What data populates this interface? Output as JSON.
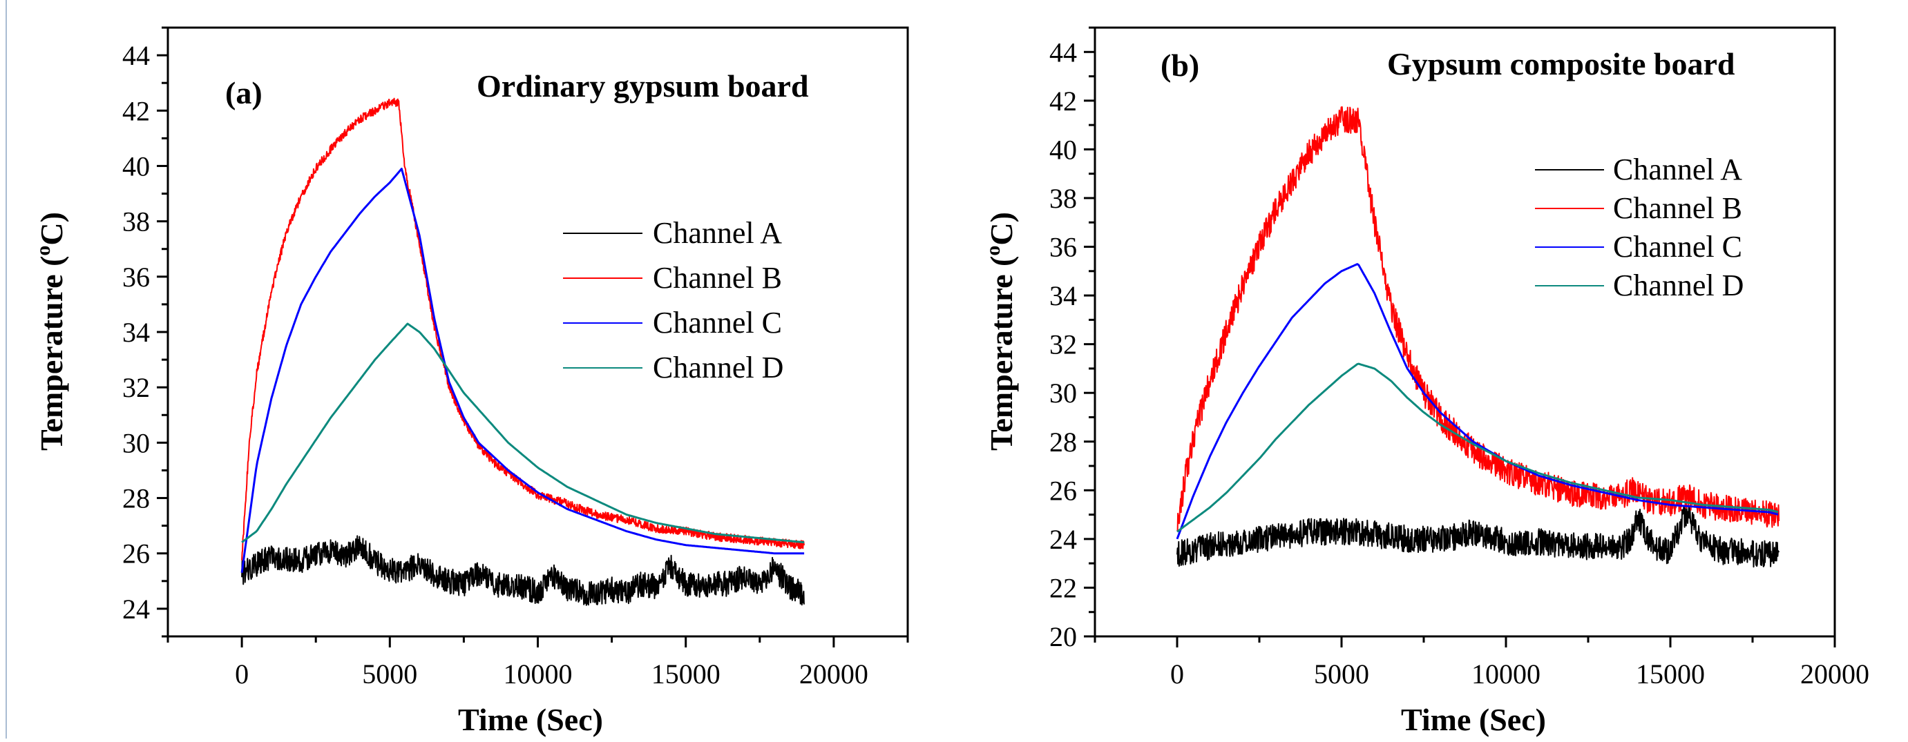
{
  "chart_data": [
    {
      "type": "line",
      "panel": "(a)",
      "title": "Ordinary gypsum board",
      "xlabel": "Time (Sec)",
      "ylabel_main": "Temperature (",
      "ylabel_sup": "o",
      "ylabel_tail": "C)",
      "xlim": [
        -2500,
        22500
      ],
      "ylim": [
        23,
        45
      ],
      "xticks": [
        0,
        5000,
        10000,
        15000,
        20000
      ],
      "yticks": [
        24,
        26,
        28,
        30,
        32,
        34,
        36,
        38,
        40,
        42,
        44
      ],
      "legend_position": "right-middle",
      "series": [
        {
          "name": "Channel A",
          "color": "#000000",
          "noise": 0.45,
          "x": [
            0,
            500,
            1000,
            1500,
            2000,
            2500,
            3000,
            3500,
            4000,
            4500,
            5000,
            5500,
            6000,
            6500,
            7000,
            7500,
            8000,
            8500,
            9000,
            9500,
            10000,
            10500,
            11000,
            11500,
            12000,
            12500,
            13000,
            13500,
            14000,
            14500,
            15000,
            15500,
            16000,
            16500,
            17000,
            17500,
            18000,
            18500,
            19000
          ],
          "y": [
            25.3,
            25.6,
            25.9,
            25.8,
            25.7,
            26.0,
            26.1,
            25.9,
            26.3,
            25.7,
            25.4,
            25.3,
            25.7,
            25.2,
            25.0,
            24.9,
            25.3,
            24.9,
            24.8,
            24.8,
            24.6,
            25.2,
            24.7,
            24.6,
            24.5,
            24.7,
            24.6,
            24.9,
            24.8,
            25.5,
            24.9,
            24.8,
            24.9,
            24.9,
            25.2,
            24.9,
            25.5,
            24.8,
            24.5
          ]
        },
        {
          "name": "Channel B",
          "color": "#ff0000",
          "noise": 0.15,
          "x": [
            0,
            250,
            500,
            1000,
            1500,
            2000,
            2500,
            3000,
            3500,
            4000,
            4500,
            5000,
            5300,
            5500,
            6000,
            6500,
            7000,
            7500,
            8000,
            8500,
            9000,
            10000,
            11000,
            12000,
            13000,
            14000,
            15000,
            16000,
            17000,
            18000,
            19000
          ],
          "y": [
            25.8,
            30.0,
            32.5,
            35.5,
            37.6,
            38.9,
            39.9,
            40.6,
            41.2,
            41.7,
            42.0,
            42.3,
            42.3,
            40.0,
            37.2,
            34.2,
            32.0,
            30.8,
            29.9,
            29.3,
            28.9,
            28.1,
            27.8,
            27.4,
            27.2,
            26.9,
            26.8,
            26.6,
            26.5,
            26.4,
            26.3
          ]
        },
        {
          "name": "Channel C",
          "color": "#0000ff",
          "noise": 0.0,
          "x": [
            0,
            500,
            1000,
            1500,
            2000,
            2500,
            3000,
            3500,
            4000,
            4500,
            5000,
            5400,
            6000,
            6500,
            7000,
            7500,
            8000,
            9000,
            10000,
            11000,
            12000,
            13000,
            14000,
            15000,
            16000,
            17000,
            18000,
            19000
          ],
          "y": [
            25.3,
            29.2,
            31.6,
            33.5,
            35.0,
            36.0,
            36.9,
            37.6,
            38.3,
            38.9,
            39.4,
            39.9,
            37.5,
            34.5,
            32.2,
            30.9,
            30.0,
            29.0,
            28.2,
            27.6,
            27.2,
            26.8,
            26.5,
            26.3,
            26.2,
            26.1,
            26.0,
            26.0
          ]
        },
        {
          "name": "Channel D",
          "color": "#0d8a7e",
          "noise": 0.0,
          "x": [
            0,
            500,
            1000,
            1500,
            2000,
            2500,
            3000,
            3500,
            4000,
            4500,
            5000,
            5600,
            6000,
            6500,
            7000,
            7500,
            8000,
            9000,
            10000,
            11000,
            12000,
            13000,
            14000,
            15000,
            16000,
            17000,
            18000,
            19000
          ],
          "y": [
            26.4,
            26.8,
            27.6,
            28.5,
            29.3,
            30.1,
            30.9,
            31.6,
            32.3,
            33.0,
            33.6,
            34.3,
            34.0,
            33.4,
            32.6,
            31.8,
            31.2,
            30.0,
            29.1,
            28.4,
            27.9,
            27.4,
            27.1,
            26.9,
            26.7,
            26.6,
            26.5,
            26.4
          ]
        }
      ]
    },
    {
      "type": "line",
      "panel": "(b)",
      "title": "Gypsum composite board",
      "xlabel": "Time (Sec)",
      "ylabel_main": "Temperature (",
      "ylabel_sup": "o",
      "ylabel_tail": "C)",
      "xlim": [
        -2500,
        20000
      ],
      "ylim": [
        20,
        45
      ],
      "xticks": [
        0,
        5000,
        10000,
        15000,
        20000
      ],
      "yticks": [
        20,
        22,
        24,
        26,
        28,
        30,
        32,
        34,
        36,
        38,
        40,
        42,
        44
      ],
      "legend_position": "top-right",
      "series": [
        {
          "name": "Channel A",
          "color": "#000000",
          "noise": 0.55,
          "x": [
            0,
            500,
            1000,
            1500,
            2000,
            2500,
            3000,
            3500,
            4000,
            4500,
            5000,
            5500,
            6000,
            6500,
            7000,
            7500,
            8000,
            8500,
            9000,
            9500,
            10000,
            10500,
            11000,
            11500,
            12000,
            12500,
            13000,
            13500,
            13800,
            14000,
            14300,
            14600,
            15000,
            15300,
            15500,
            15800,
            16200,
            16600,
            17000,
            17500,
            18000,
            18300
          ],
          "y": [
            23.4,
            23.5,
            23.7,
            23.8,
            23.9,
            24.0,
            24.1,
            24.1,
            24.3,
            24.3,
            24.3,
            24.3,
            24.2,
            24.1,
            24.0,
            24.0,
            24.0,
            24.1,
            24.3,
            24.1,
            23.9,
            23.8,
            23.9,
            23.8,
            23.7,
            23.7,
            23.7,
            23.7,
            24.0,
            25.0,
            24.1,
            23.6,
            23.5,
            24.5,
            25.1,
            24.2,
            23.7,
            23.5,
            23.5,
            23.4,
            23.4,
            23.4
          ]
        },
        {
          "name": "Channel B",
          "color": "#ff0000",
          "noise": 0.55,
          "x": [
            0,
            250,
            500,
            1000,
            1500,
            2000,
            2500,
            3000,
            3500,
            4000,
            4500,
            5000,
            5500,
            6000,
            6500,
            7000,
            7500,
            8000,
            9000,
            10000,
            11000,
            12000,
            13000,
            13500,
            13900,
            14300,
            15000,
            15500,
            16000,
            17000,
            18000,
            18300
          ],
          "y": [
            24.4,
            26.5,
            28.2,
            30.5,
            32.5,
            34.4,
            36.0,
            37.5,
            38.7,
            39.8,
            40.7,
            41.2,
            41.2,
            37.0,
            33.5,
            31.5,
            30.0,
            29.0,
            27.6,
            26.8,
            26.3,
            25.9,
            25.7,
            25.7,
            26.1,
            25.6,
            25.5,
            25.8,
            25.4,
            25.2,
            25.0,
            25.0
          ]
        },
        {
          "name": "Channel C",
          "color": "#0000ff",
          "noise": 0.0,
          "x": [
            0,
            500,
            1000,
            1500,
            2000,
            2500,
            3000,
            3500,
            4000,
            4500,
            5000,
            5500,
            6000,
            6500,
            7000,
            7500,
            8000,
            9000,
            10000,
            11000,
            12000,
            13000,
            14000,
            15000,
            16000,
            17000,
            18000,
            18300
          ],
          "y": [
            24.0,
            25.8,
            27.4,
            28.8,
            30.0,
            31.1,
            32.1,
            33.1,
            33.8,
            34.5,
            35.0,
            35.3,
            34.1,
            32.5,
            31.0,
            30.0,
            29.2,
            28.0,
            27.2,
            26.6,
            26.2,
            25.9,
            25.6,
            25.4,
            25.3,
            25.2,
            25.1,
            25.0
          ]
        },
        {
          "name": "Channel D",
          "color": "#0d8a7e",
          "noise": 0.0,
          "x": [
            0,
            500,
            1000,
            1500,
            2000,
            2500,
            3000,
            3500,
            4000,
            4500,
            5000,
            5500,
            6000,
            6500,
            7000,
            7500,
            8000,
            9000,
            10000,
            11000,
            12000,
            13000,
            14000,
            15000,
            16000,
            17000,
            18000,
            18300
          ],
          "y": [
            24.3,
            24.8,
            25.3,
            25.9,
            26.6,
            27.3,
            28.1,
            28.8,
            29.5,
            30.1,
            30.7,
            31.2,
            31.0,
            30.5,
            29.8,
            29.2,
            28.7,
            27.9,
            27.2,
            26.7,
            26.3,
            26.0,
            25.7,
            25.6,
            25.4,
            25.3,
            25.2,
            25.1
          ]
        }
      ]
    }
  ]
}
